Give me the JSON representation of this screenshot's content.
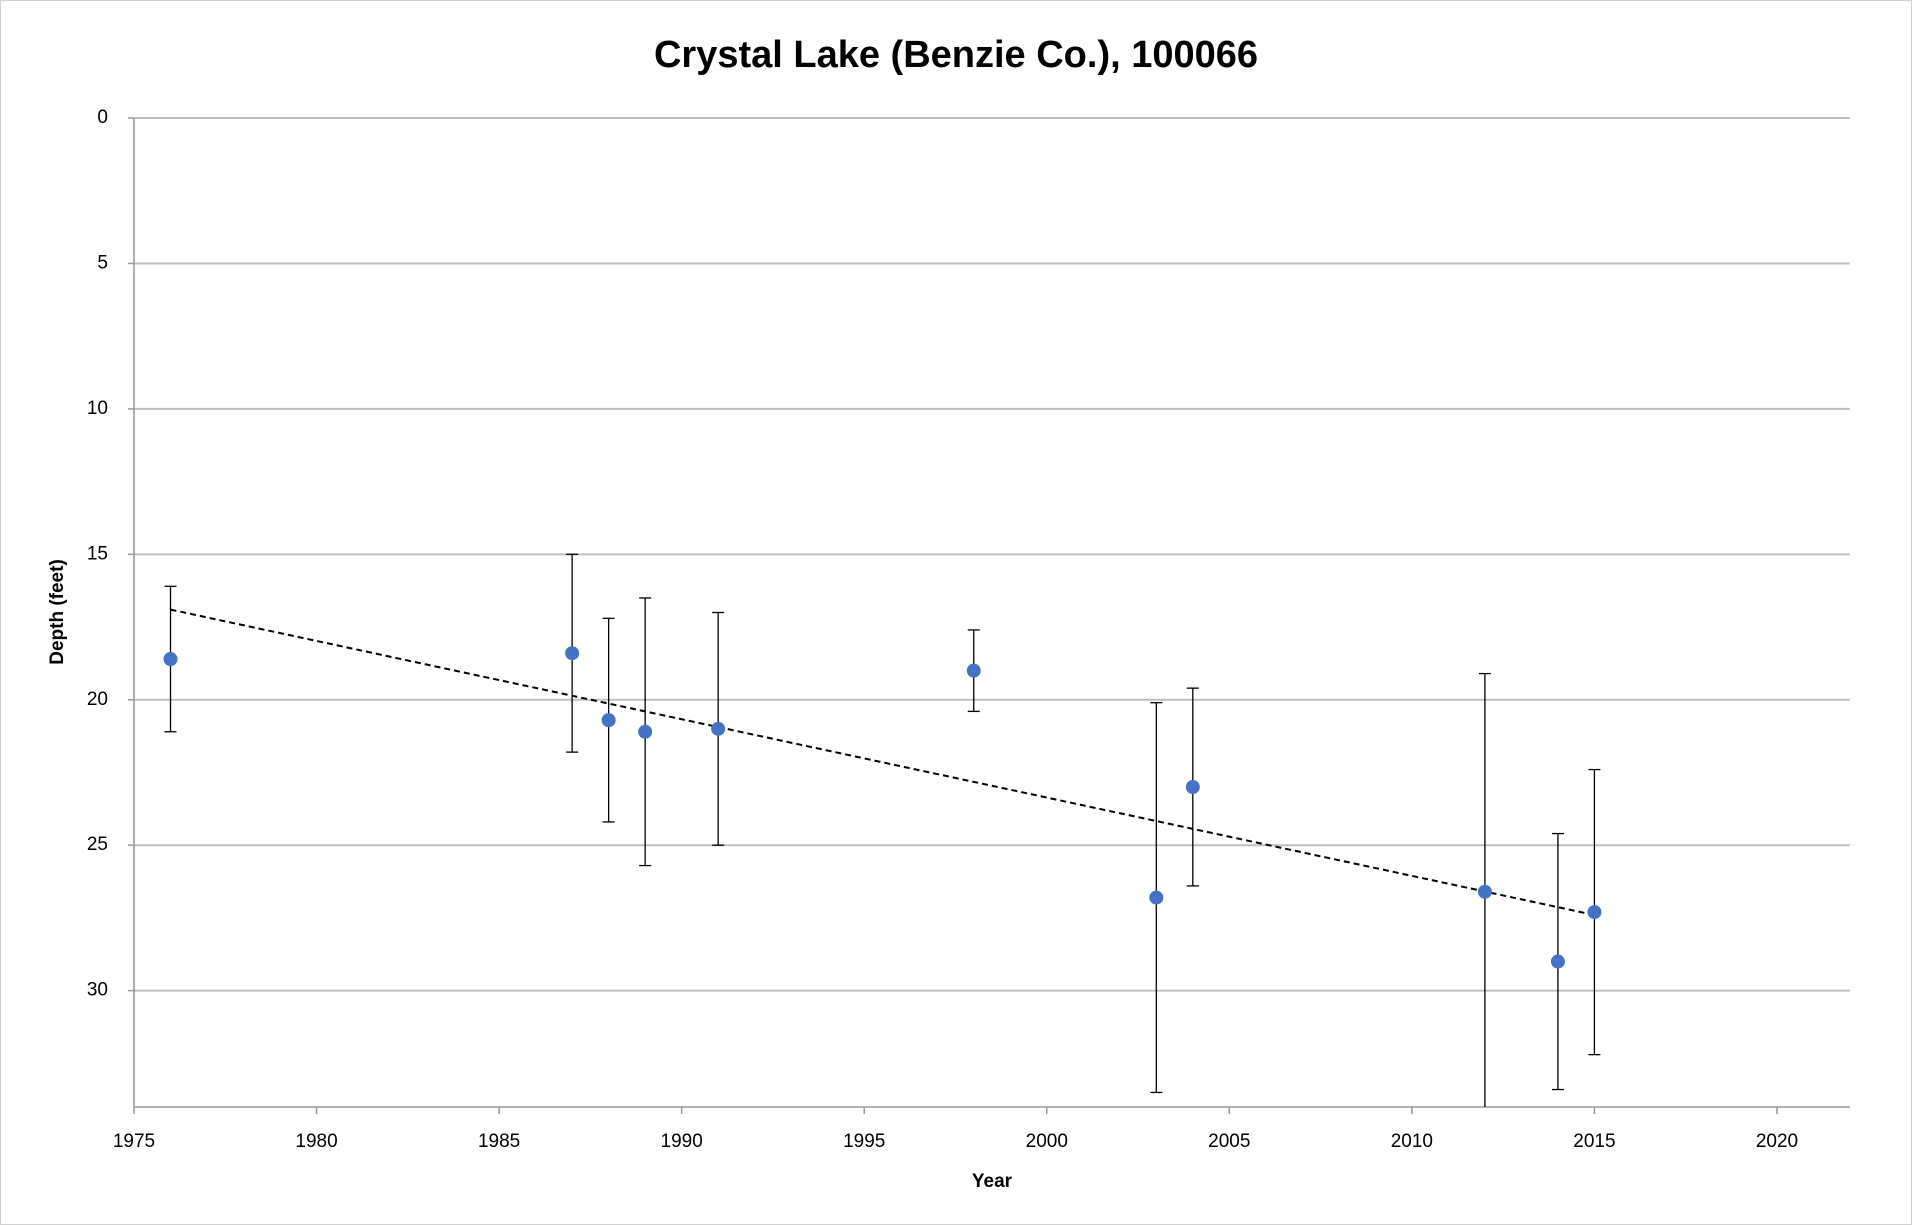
{
  "chart_data": {
    "type": "scatter",
    "title": "Crystal Lake (Benzie Co.), 100066",
    "x_label": "Year",
    "y_label": "Depth (feet)",
    "x": [
      1976,
      1987,
      1988,
      1989,
      1991,
      1998,
      2003,
      2004,
      2012,
      2014,
      2015
    ],
    "values": [
      18.6,
      18.4,
      20.7,
      21.1,
      21.0,
      19.0,
      26.8,
      23.0,
      26.6,
      29.0,
      27.3
    ],
    "errors": [
      2.5,
      3.4,
      3.5,
      4.6,
      4.0,
      1.4,
      6.7,
      3.4,
      7.5,
      4.4,
      4.9
    ],
    "color": "#4472c4",
    "trendline": {
      "x": [
        1976,
        2015
      ],
      "values": [
        16.9,
        27.4
      ]
    },
    "xlim": [
      1975,
      2022
    ],
    "xticks": [
      1975,
      1980,
      1985,
      1990,
      1995,
      2000,
      2005,
      2010,
      2015,
      2020
    ],
    "ylim": [
      0,
      34
    ],
    "yticks": [
      0,
      5,
      10,
      15,
      20,
      25,
      30
    ],
    "y_inverted": true,
    "grid": true
  }
}
